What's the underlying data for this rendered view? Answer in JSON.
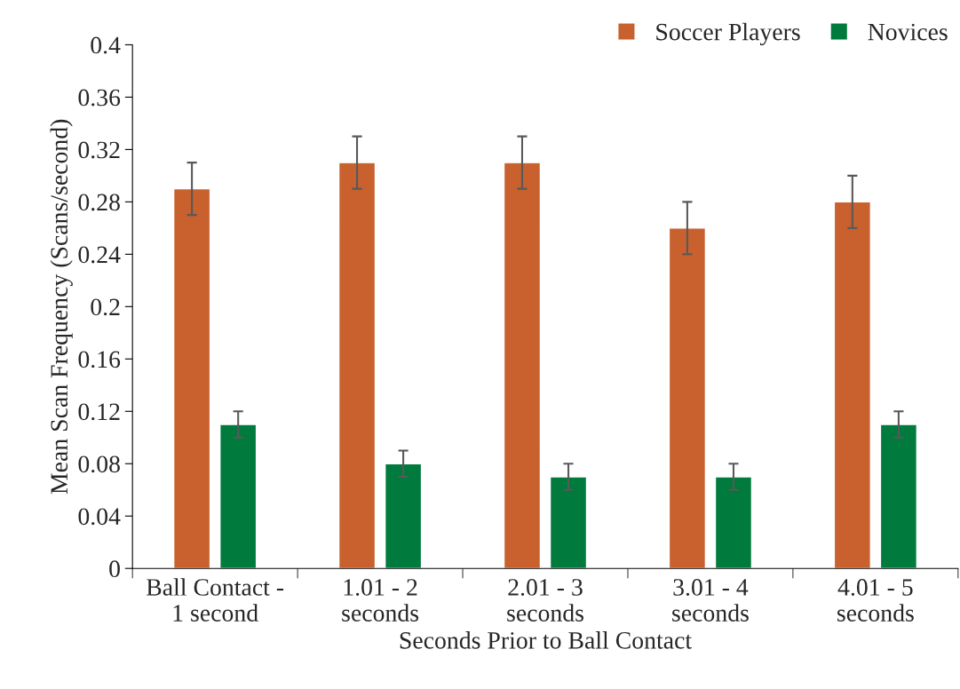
{
  "chart_data": {
    "type": "bar",
    "xlabel": "Seconds Prior to Ball Contact",
    "ylabel": "Mean Scan Frequency (Scans/second)",
    "categories": [
      "Ball Contact -\n1 second",
      "1.01 - 2\nseconds",
      "2.01 - 3\nseconds",
      "3.01 - 4\nseconds",
      "4.01 - 5\nseconds"
    ],
    "series": [
      {
        "name": "Soccer Players",
        "color": "#c8612d",
        "values": [
          0.29,
          0.31,
          0.31,
          0.26,
          0.28
        ],
        "errors": [
          0.02,
          0.02,
          0.02,
          0.02,
          0.02
        ]
      },
      {
        "name": "Novices",
        "color": "#007a3d",
        "values": [
          0.11,
          0.08,
          0.07,
          0.07,
          0.11
        ],
        "errors": [
          0.01,
          0.01,
          0.01,
          0.01,
          0.01
        ]
      }
    ],
    "ylim": [
      0,
      0.4
    ],
    "yticks": [
      0,
      0.04,
      0.08,
      0.12,
      0.16,
      0.2,
      0.24,
      0.28,
      0.32,
      0.36,
      0.4
    ],
    "grid": false,
    "legend": "top right"
  }
}
